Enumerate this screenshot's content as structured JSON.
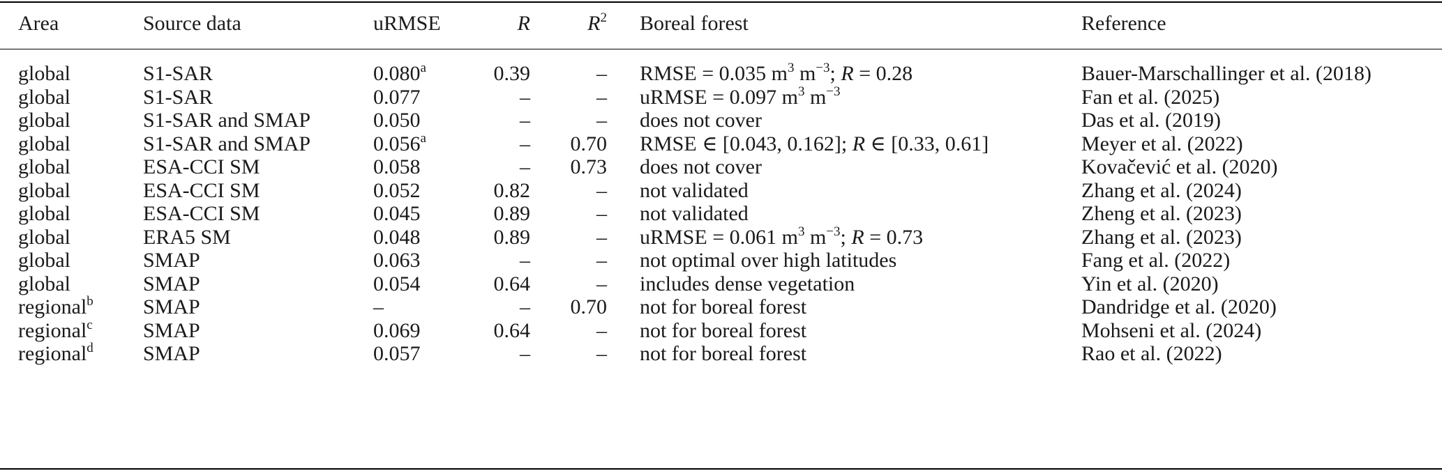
{
  "table": {
    "headers": {
      "area": "Area",
      "source": "Source data",
      "urmse": "uRMSE",
      "r": "R",
      "r2": "R",
      "r2_sup": "2",
      "boreal": "Boreal forest",
      "reference": "Reference"
    },
    "rows": [
      {
        "area": "global",
        "area_sup": "",
        "source": "S1-SAR",
        "urmse": "0.080",
        "urmse_sup": "a",
        "r": "0.39",
        "r2": "–",
        "boreal_html": "RMSE = 0.035 m<sup>3</sup> m<sup>−3</sup>; <i>R</i> = 0.28",
        "reference": "Bauer-Marschallinger et al. (2018)"
      },
      {
        "area": "global",
        "area_sup": "",
        "source": "S1-SAR",
        "urmse": "0.077",
        "urmse_sup": "",
        "r": "–",
        "r2": "–",
        "boreal_html": "uRMSE = 0.097 m<sup>3</sup> m<sup>−3</sup>",
        "reference": "Fan et al. (2025)"
      },
      {
        "area": "global",
        "area_sup": "",
        "source": "S1-SAR and SMAP",
        "urmse": "0.050",
        "urmse_sup": "",
        "r": "–",
        "r2": "–",
        "boreal_html": "does not cover",
        "reference": "Das et al. (2019)"
      },
      {
        "area": "global",
        "area_sup": "",
        "source": "S1-SAR and SMAP",
        "urmse": "0.056",
        "urmse_sup": "a",
        "r": "–",
        "r2": "0.70",
        "boreal_html": "RMSE ∈ [0.043, 0.162]; <i>R</i> ∈ [0.33, 0.61]",
        "reference": "Meyer et al. (2022)"
      },
      {
        "area": "global",
        "area_sup": "",
        "source": "ESA-CCI SM",
        "urmse": "0.058",
        "urmse_sup": "",
        "r": "–",
        "r2": "0.73",
        "boreal_html": "does not cover",
        "reference": "Kovačević et al. (2020)"
      },
      {
        "area": "global",
        "area_sup": "",
        "source": "ESA-CCI SM",
        "urmse": "0.052",
        "urmse_sup": "",
        "r": "0.82",
        "r2": "–",
        "boreal_html": "not validated",
        "reference": "Zhang et al. (2024)"
      },
      {
        "area": "global",
        "area_sup": "",
        "source": "ESA-CCI SM",
        "urmse": "0.045",
        "urmse_sup": "",
        "r": "0.89",
        "r2": "–",
        "boreal_html": "not validated",
        "reference": "Zheng et al. (2023)"
      },
      {
        "area": "global",
        "area_sup": "",
        "source": "ERA5 SM",
        "urmse": "0.048",
        "urmse_sup": "",
        "r": "0.89",
        "r2": "–",
        "boreal_html": "uRMSE = 0.061 m<sup>3</sup> m<sup>−3</sup>; <i>R</i> = 0.73",
        "reference": "Zhang et al. (2023)"
      },
      {
        "area": "global",
        "area_sup": "",
        "source": "SMAP",
        "urmse": "0.063",
        "urmse_sup": "",
        "r": "–",
        "r2": "–",
        "boreal_html": "not optimal over high latitudes",
        "reference": "Fang et al. (2022)"
      },
      {
        "area": "global",
        "area_sup": "",
        "source": "SMAP",
        "urmse": "0.054",
        "urmse_sup": "",
        "r": "0.64",
        "r2": "–",
        "boreal_html": "includes dense vegetation",
        "reference": "Yin et al. (2020)"
      },
      {
        "area": "regional",
        "area_sup": "b",
        "source": "SMAP",
        "urmse": "–",
        "urmse_sup": "",
        "r": "–",
        "r2": "0.70",
        "boreal_html": "not for boreal forest",
        "reference": "Dandridge et al. (2020)"
      },
      {
        "area": "regional",
        "area_sup": "c",
        "source": "SMAP",
        "urmse": "0.069",
        "urmse_sup": "",
        "r": "0.64",
        "r2": "–",
        "boreal_html": "not for boreal forest",
        "reference": "Mohseni et al. (2024)"
      },
      {
        "area": "regional",
        "area_sup": "d",
        "source": "SMAP",
        "urmse": "0.057",
        "urmse_sup": "",
        "r": "–",
        "r2": "–",
        "boreal_html": "not for boreal forest",
        "reference": "Rao et al. (2022)"
      }
    ]
  }
}
